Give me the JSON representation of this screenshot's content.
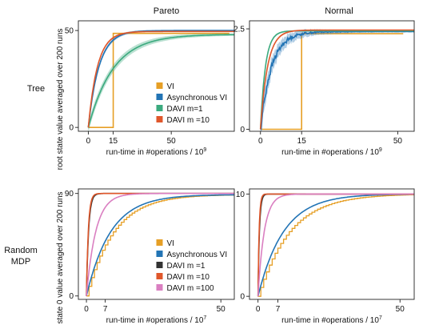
{
  "figure": {
    "col_titles": [
      "Pareto",
      "Normal"
    ],
    "row_labels": [
      [
        "Tree"
      ],
      [
        "Random",
        "MDP"
      ]
    ],
    "row_ylabels": [
      "root state value averaged over 200 runs",
      "state 0 value averaged over 200 runs"
    ]
  },
  "colors": {
    "VI": "#E69F25",
    "Asynchronous VI": "#2274B5",
    "DAVI m=1": "#3BAA7E",
    "DAVI m =10": "#E0572B",
    "DAVI m =100": "#DA7FC1"
  },
  "chart_data": [
    {
      "id": "tree-pareto",
      "type": "line",
      "xlabel": "run-time in #operations / 10",
      "xlabel_exp": "9",
      "xlim": [
        -6,
        88
      ],
      "ylim": [
        -2,
        55
      ],
      "xticks": [
        0,
        15,
        50
      ],
      "yticks": [
        0,
        50
      ],
      "legend": {
        "position": "center-right",
        "entries": [
          "VI",
          "Asynchronous VI",
          "DAVI m=1",
          "DAVI m =10"
        ]
      },
      "series": [
        {
          "name": "VI",
          "kind": "step",
          "steps": [
            [
              0,
              0
            ],
            [
              15,
              0
            ],
            [
              15,
              48.5
            ],
            [
              85,
              48.5
            ]
          ]
        },
        {
          "name": "Asynchronous VI",
          "kind": "curve",
          "final": 50,
          "tau": 6.5,
          "band": 1.5
        },
        {
          "name": "DAVI m=1",
          "kind": "curve",
          "final": 48,
          "tau": 15,
          "band": 2.5
        },
        {
          "name": "DAVI m =10",
          "kind": "curve",
          "final": 49.5,
          "tau": 5.5,
          "band": 1
        }
      ]
    },
    {
      "id": "tree-normal",
      "type": "line",
      "xlabel": "run-time in #operations / 10",
      "xlabel_exp": "9",
      "xlim": [
        -4,
        56
      ],
      "ylim": [
        -0.05,
        2.7
      ],
      "xticks": [
        0,
        15,
        50
      ],
      "yticks": [
        0,
        2.5
      ],
      "series": [
        {
          "name": "VI",
          "kind": "step",
          "steps": [
            [
              0,
              0
            ],
            [
              15,
              0
            ],
            [
              15,
              2.38
            ],
            [
              52,
              2.38
            ]
          ]
        },
        {
          "name": "Asynchronous VI",
          "kind": "noisy",
          "final": 2.43,
          "tau": 4,
          "band": 0.25
        },
        {
          "name": "DAVI m=1",
          "kind": "curve",
          "final": 2.45,
          "tau": 1.8,
          "band": 0.05
        },
        {
          "name": "DAVI m =10",
          "kind": "curve",
          "final": 2.47,
          "tau": 2.6,
          "band": 0.05
        }
      ]
    },
    {
      "id": "mdp-pareto",
      "type": "line",
      "xlabel": "run-time in #operations / 10",
      "xlabel_exp": "7",
      "xlim": [
        -3,
        55
      ],
      "ylim": [
        -3,
        94
      ],
      "xticks": [
        0,
        7,
        50
      ],
      "yticks": [
        0,
        90
      ],
      "legend": {
        "position": "center-right",
        "entries": [
          "VI",
          "Asynchronous VI",
          "DAVI m =1",
          "DAVI m =10",
          "DAVI m =100"
        ]
      },
      "series": [
        {
          "name": "VI",
          "kind": "staircase",
          "final": 89,
          "tau": 10,
          "step": 1
        },
        {
          "name": "Asynchronous VI",
          "kind": "curve",
          "final": 89,
          "tau": 9,
          "band": 0
        },
        {
          "name": "DAVI m =1",
          "kind": "curve",
          "final": 90,
          "tau": 0.8,
          "band": 0
        },
        {
          "name": "DAVI m =10",
          "kind": "curve",
          "final": 90,
          "tau": 0.7,
          "band": 0
        },
        {
          "name": "DAVI m =100",
          "kind": "curve",
          "final": 90,
          "tau": 3.5,
          "band": 0
        }
      ]
    },
    {
      "id": "mdp-normal",
      "type": "line",
      "xlabel": "run-time in #operations / 10",
      "xlabel_exp": "7",
      "xlim": [
        -3,
        55
      ],
      "ylim": [
        -0.3,
        10.5
      ],
      "xticks": [
        0,
        7,
        50
      ],
      "yticks": [
        0,
        10
      ],
      "series": [
        {
          "name": "VI",
          "kind": "staircase",
          "final": 10,
          "tau": 11,
          "step": 1
        },
        {
          "name": "Asynchronous VI",
          "kind": "curve",
          "final": 10,
          "tau": 9,
          "band": 0
        },
        {
          "name": "DAVI m =1",
          "kind": "curve",
          "final": 10,
          "tau": 0.5,
          "band": 0
        },
        {
          "name": "DAVI m =10",
          "kind": "curve",
          "final": 10,
          "tau": 0.4,
          "band": 0
        },
        {
          "name": "DAVI m =100",
          "kind": "curve",
          "final": 10,
          "tau": 2.2,
          "band": 0
        }
      ]
    }
  ]
}
